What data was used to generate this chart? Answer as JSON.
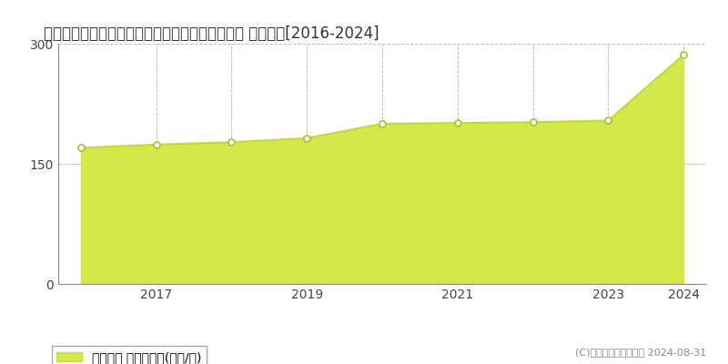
{
  "title": "東京都目黒区大岡山１丁目８６番１８　地価公示 地価推移[2016-2024]",
  "x_data": [
    2016,
    2017,
    2018,
    2019,
    2020,
    2021,
    2022,
    2023,
    2024
  ],
  "y_data": [
    170,
    174,
    177,
    182,
    200,
    201,
    202,
    204,
    286
  ],
  "ylim": [
    0,
    300
  ],
  "yticks": [
    0,
    150,
    300
  ],
  "xticks": [
    2017,
    2019,
    2021,
    2023,
    2024
  ],
  "line_color": "#c8d832",
  "fill_color": "#d4e84a",
  "marker_facecolor": "#ffffff",
  "marker_edgecolor": "#b0c020",
  "bg_color": "#ffffff",
  "grid_color": "#bbbbbb",
  "legend_label": "地価公示 平均坊単価(万円/坪)",
  "copyright_text": "(C)土地価格ドットコム 2024-08-31",
  "title_fontsize": 12,
  "axis_fontsize": 10,
  "legend_fontsize": 10,
  "copyright_fontsize": 8
}
